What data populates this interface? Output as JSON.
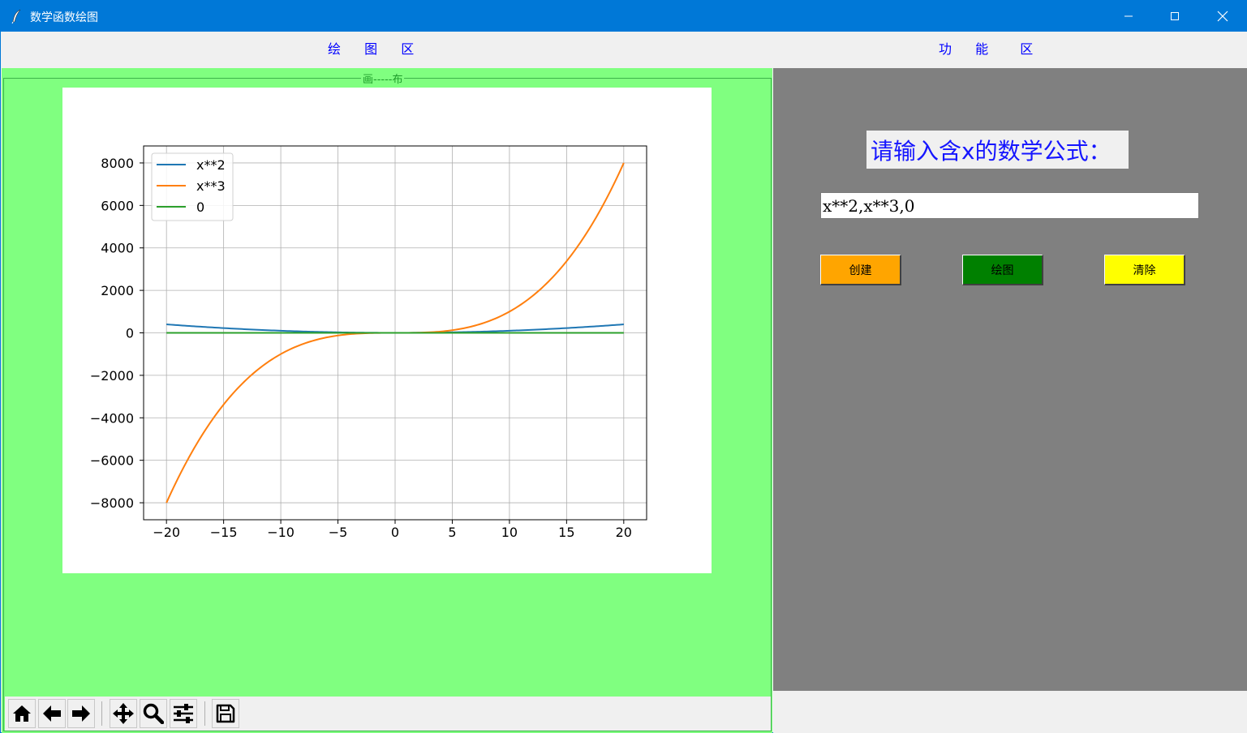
{
  "window": {
    "title": "数学函数绘图",
    "minimize_glyph": "—",
    "maximize_glyph": "☐",
    "close_glyph": "✕"
  },
  "header": {
    "left_label_chars": [
      "绘",
      "图",
      "区"
    ],
    "right_label_chars": [
      "功",
      "能",
      "区"
    ]
  },
  "plot_frame": {
    "title": "画-----布",
    "background": "#80ff80"
  },
  "chart_data": {
    "type": "line",
    "title": "",
    "xlabel": "",
    "ylabel": "",
    "xlim": [
      -22,
      22
    ],
    "ylim": [
      -8800,
      8800
    ],
    "x_ticks": [
      -20,
      -15,
      -10,
      -5,
      0,
      5,
      10,
      15,
      20
    ],
    "x_tick_labels": [
      "−20",
      "−15",
      "−10",
      "−5",
      "0",
      "5",
      "10",
      "15",
      "20"
    ],
    "y_ticks": [
      8000,
      6000,
      4000,
      2000,
      0,
      -2000,
      -4000,
      -6000,
      -8000
    ],
    "y_tick_labels": [
      "8000",
      "6000",
      "4000",
      "2000",
      "0",
      "−2000",
      "−4000",
      "−6000",
      "−8000"
    ],
    "grid": true,
    "legend_position": "top-left",
    "x": [
      -20,
      -15,
      -10,
      -5,
      0,
      5,
      10,
      15,
      20
    ],
    "series": [
      {
        "name": "x**2",
        "color": "#1f77b4",
        "values": [
          400,
          225,
          100,
          25,
          0,
          25,
          100,
          225,
          400
        ]
      },
      {
        "name": "x**3",
        "color": "#ff7f0e",
        "values": [
          -8000,
          -3375,
          -1000,
          -125,
          0,
          125,
          1000,
          3375,
          8000
        ]
      },
      {
        "name": "0",
        "color": "#2ca02c",
        "values": [
          0,
          0,
          0,
          0,
          0,
          0,
          0,
          0,
          0
        ]
      }
    ]
  },
  "toolbar": {
    "buttons": [
      "home-icon",
      "back-icon",
      "forward-icon",
      "pan-icon",
      "zoom-icon",
      "configure-subplots-icon",
      "save-icon"
    ]
  },
  "function_panel": {
    "prompt": "请输入含x的数学公式：",
    "formula_value": "x**2,x**3,0",
    "buttons": [
      {
        "label": "创建",
        "color": "#ffa500"
      },
      {
        "label": "绘图",
        "color": "#008000"
      },
      {
        "label": "清除",
        "color": "#ffff00"
      }
    ]
  },
  "colors": {
    "titlebar": "#0078d7",
    "right_panel": "#808080",
    "header_text": "#0000ff"
  }
}
